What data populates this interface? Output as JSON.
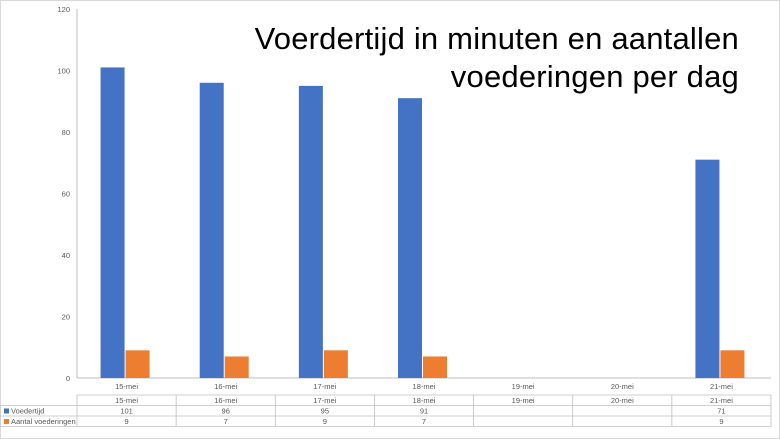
{
  "chart_data": {
    "type": "bar",
    "title_lines": [
      "Voerdertijd in minuten en aantallen",
      "voederingen per dag"
    ],
    "categories": [
      "15-mei",
      "16-mei",
      "17-mei",
      "18-mei",
      "19-mei",
      "20-mei",
      "21-mei"
    ],
    "series": [
      {
        "name": "Voedertijd",
        "color": "#4472c4",
        "values": [
          101,
          96,
          95,
          91,
          null,
          null,
          71
        ]
      },
      {
        "name": "Aantal voederingen",
        "color": "#ed7d31",
        "values": [
          9,
          7,
          9,
          7,
          null,
          null,
          9
        ]
      }
    ],
    "ylim": [
      0,
      120
    ],
    "yticks": [
      0,
      20,
      40,
      60,
      80,
      100,
      120
    ],
    "grid": false,
    "legend": "data-table-below",
    "data_table": true
  }
}
